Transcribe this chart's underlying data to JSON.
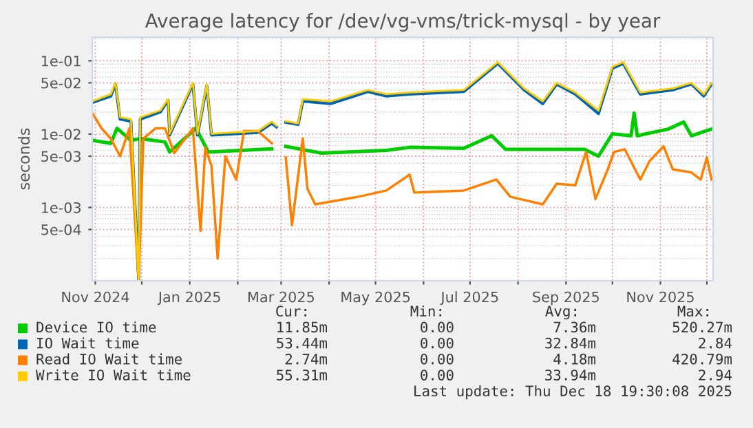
{
  "chart_data": {
    "type": "line",
    "title": "Average latency for /dev/vg-vms/trick-mysql - by year",
    "ylabel": "seconds",
    "log": "y",
    "xlim": [
      "2024-10-30",
      "2025-12-05"
    ],
    "ylim": [
      0.0001,
      0.21
    ],
    "xticks": [
      {
        "value": "2024-11-01",
        "label": "Nov 2024"
      },
      {
        "value": "2024-12-01",
        "label": null
      },
      {
        "value": "2025-01-01",
        "label": "Jan 2025"
      },
      {
        "value": "2025-02-01",
        "label": null
      },
      {
        "value": "2025-03-01",
        "label": "Mar 2025"
      },
      {
        "value": "2025-04-01",
        "label": null
      },
      {
        "value": "2025-05-01",
        "label": "May 2025"
      },
      {
        "value": "2025-06-01",
        "label": null
      },
      {
        "value": "2025-07-01",
        "label": "Jul 2025"
      },
      {
        "value": "2025-08-01",
        "label": null
      },
      {
        "value": "2025-09-01",
        "label": "Sep 2025"
      },
      {
        "value": "2025-10-01",
        "label": null
      },
      {
        "value": "2025-11-01",
        "label": "Nov 2025"
      },
      {
        "value": "2025-12-01",
        "label": null
      }
    ],
    "yticks": [
      {
        "value": 0.1,
        "label": "1e-01"
      },
      {
        "value": 0.05,
        "label": "5e-02"
      },
      {
        "value": 0.01,
        "label": "1e-02"
      },
      {
        "value": 0.005,
        "label": "5e-03"
      },
      {
        "value": 0.001,
        "label": "1e-03"
      },
      {
        "value": 0.0005,
        "label": "5e-04"
      }
    ],
    "grid": true,
    "legend": "bottom",
    "series": [
      {
        "name": "Device IO time",
        "color": "#00cc00",
        "x": [
          "2024-10-30",
          "2024-11-11",
          "2024-11-15",
          "2024-11-24",
          "2024-11-30",
          "2024-12-16",
          "2024-12-19",
          "2025-01-05",
          "2025-01-13",
          "2025-02-23",
          "2025-03-01",
          "2025-03-04",
          "2025-03-27",
          "2025-05-08",
          "2025-05-23",
          "2025-06-27",
          "2025-07-15",
          "2025-07-24",
          "2025-08-26",
          "2025-09-13",
          "2025-09-22",
          "2025-10-01",
          "2025-10-13",
          "2025-10-15",
          "2025-10-17",
          "2025-11-06",
          "2025-11-16",
          "2025-11-21",
          "2025-12-04"
        ],
        "values": [
          0.0082,
          0.0075,
          0.012,
          0.0082,
          0.0087,
          0.0078,
          0.0057,
          0.012,
          0.0057,
          0.0063,
          null,
          0.0068,
          0.0055,
          0.006,
          0.0066,
          0.0064,
          0.0095,
          0.0062,
          0.0062,
          0.0062,
          0.005,
          0.0101,
          0.0095,
          0.0194,
          0.0095,
          0.0117,
          0.0146,
          0.0095,
          0.0117
        ]
      },
      {
        "name": "IO Wait time",
        "color": "#0066b3",
        "x": [
          "2024-10-30",
          "2024-11-11",
          "2024-11-14",
          "2024-11-17",
          "2024-11-24",
          "2024-11-29",
          "2024-11-30",
          "2024-12-13",
          "2024-12-18",
          "2024-12-19",
          "2025-01-03",
          "2025-01-06",
          "2025-01-12",
          "2025-01-15",
          "2025-02-14",
          "2025-02-23",
          "2025-02-26",
          "2025-03-01",
          "2025-03-04",
          "2025-03-12",
          "2025-03-15",
          "2025-04-02",
          "2025-04-26",
          "2025-05-08",
          "2025-05-23",
          "2025-06-27",
          "2025-07-19",
          "2025-08-05",
          "2025-08-17",
          "2025-08-26",
          "2025-09-07",
          "2025-09-22",
          "2025-10-01",
          "2025-10-08",
          "2025-10-19",
          "2025-11-09",
          "2025-11-21",
          "2025-11-29",
          "2025-12-04"
        ],
        "values": [
          0.027,
          0.033,
          0.048,
          0.016,
          0.015,
          0.0001,
          0.016,
          0.02,
          0.029,
          0.0097,
          0.048,
          0.0097,
          0.046,
          0.0097,
          0.0105,
          0.014,
          0.0125,
          null,
          0.0145,
          0.0135,
          0.028,
          0.026,
          0.038,
          0.033,
          0.035,
          0.038,
          0.092,
          0.04,
          0.026,
          0.048,
          0.035,
          0.019,
          0.079,
          0.092,
          0.035,
          0.04,
          0.048,
          0.033,
          0.048
        ]
      },
      {
        "name": "Read IO Wait time",
        "color": "#ff8000",
        "x": [
          "2024-10-30",
          "2024-11-05",
          "2024-11-11",
          "2024-11-17",
          "2024-11-23",
          "2024-11-29",
          "2024-12-02",
          "2024-12-10",
          "2024-12-16",
          "2024-12-22",
          "2025-01-03",
          "2025-01-08",
          "2025-01-11",
          "2025-01-15",
          "2025-01-19",
          "2025-01-24",
          "2025-01-31",
          "2025-02-05",
          "2025-02-14",
          "2025-02-23",
          "2025-03-01",
          "2025-03-04",
          "2025-03-08",
          "2025-03-15",
          "2025-03-18",
          "2025-03-23",
          "2025-04-02",
          "2025-04-20",
          "2025-05-08",
          "2025-05-23",
          "2025-05-26",
          "2025-06-27",
          "2025-07-18",
          "2025-07-27",
          "2025-08-17",
          "2025-08-26",
          "2025-09-07",
          "2025-09-14",
          "2025-09-20",
          "2025-09-28",
          "2025-10-02",
          "2025-10-09",
          "2025-10-19",
          "2025-10-25",
          "2025-11-03",
          "2025-11-09",
          "2025-11-21",
          "2025-11-27",
          "2025-12-01",
          "2025-12-04"
        ],
        "values": [
          0.0194,
          0.012,
          0.0087,
          0.005,
          0.012,
          0.0001,
          0.0087,
          0.012,
          0.012,
          0.0055,
          0.012,
          0.00048,
          0.0065,
          0.0037,
          0.0002,
          0.005,
          0.0024,
          0.011,
          0.011,
          0.0075,
          null,
          0.0048,
          0.00057,
          0.0087,
          0.0018,
          0.0011,
          0.0012,
          0.0014,
          0.0017,
          0.0028,
          0.0016,
          0.0017,
          0.0024,
          0.0014,
          0.0011,
          0.0021,
          0.002,
          0.0057,
          0.0013,
          0.0033,
          0.0057,
          0.0062,
          0.0024,
          0.0043,
          0.0068,
          0.0033,
          0.003,
          0.0024,
          0.0048,
          0.0024
        ]
      },
      {
        "name": "Write IO Wait time",
        "color": "#ffcc00",
        "x": [
          "2024-10-30",
          "2024-11-11",
          "2024-11-14",
          "2024-11-17",
          "2024-11-24",
          "2024-11-29",
          "2024-11-30",
          "2024-12-13",
          "2024-12-18",
          "2024-12-19",
          "2025-01-03",
          "2025-01-06",
          "2025-01-12",
          "2025-01-15",
          "2025-02-14",
          "2025-02-23",
          "2025-02-26",
          "2025-03-01",
          "2025-03-04",
          "2025-03-12",
          "2025-03-15",
          "2025-04-02",
          "2025-04-26",
          "2025-05-08",
          "2025-05-23",
          "2025-06-27",
          "2025-07-19",
          "2025-08-05",
          "2025-08-17",
          "2025-08-26",
          "2025-09-07",
          "2025-09-22",
          "2025-10-01",
          "2025-10-08",
          "2025-10-19",
          "2025-11-09",
          "2025-11-21",
          "2025-11-29",
          "2025-12-04"
        ],
        "values": [
          0.028,
          0.035,
          0.05,
          0.017,
          0.016,
          0.0001,
          0.017,
          0.021,
          0.03,
          0.0101,
          0.05,
          0.0101,
          0.048,
          0.0101,
          0.011,
          0.0148,
          0.013,
          null,
          0.015,
          0.014,
          0.03,
          0.028,
          0.04,
          0.035,
          0.037,
          0.04,
          0.096,
          0.042,
          0.028,
          0.05,
          0.037,
          0.021,
          0.083,
          0.096,
          0.037,
          0.042,
          0.05,
          0.035,
          0.05
        ]
      }
    ],
    "annotations": [
      "Cur:",
      "Min:",
      "Avg:",
      "Max:",
      "11.85m",
      "0.00",
      "7.36m",
      "520.27m",
      "53.44m",
      "0.00",
      "32.84m",
      "2.84",
      "2.74m",
      "0.00",
      "4.18m",
      "420.79m",
      "55.31m",
      "0.00",
      "33.94m",
      "2.94",
      "Last update: Thu Dec 18 19:30:08 2025"
    ]
  }
}
